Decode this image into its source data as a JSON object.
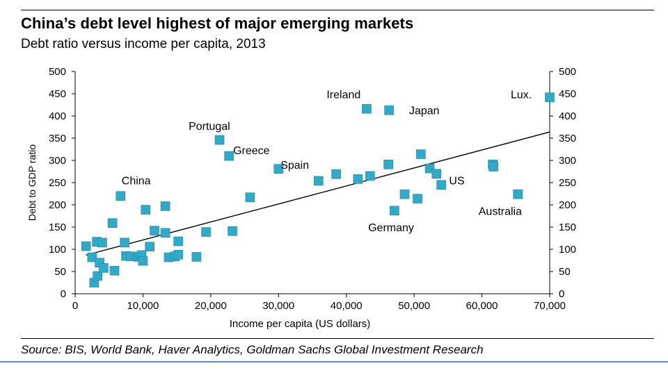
{
  "title": "China’s debt level highest of major emerging markets",
  "subtitle": "Debt ratio versus income per capita, 2013",
  "source": "Source: BIS, World Bank, Haver Analytics, Goldman Sachs Global Investment Research",
  "colors": {
    "marker": "#31a9c7",
    "markerEdge": "#1c86a3",
    "axis": "#000000",
    "trend": "#000000",
    "accentBar": "#5b8fc9"
  },
  "chart_data": {
    "type": "scatter",
    "xlabel": "Income per capita (US dollars)",
    "ylabel": "Debt to GDP ratio",
    "xlim": [
      0,
      70000
    ],
    "ylim": [
      0,
      500
    ],
    "xticks": [
      "0",
      "10,000",
      "20,000",
      "30,000",
      "40,000",
      "50,000",
      "60,000",
      "70,000"
    ],
    "yticks": [
      "0",
      "50",
      "100",
      "150",
      "200",
      "250",
      "300",
      "350",
      "400",
      "450",
      "500"
    ],
    "grid": false,
    "legend": "none",
    "points": [
      {
        "x": 1600,
        "y": 107
      },
      {
        "x": 2500,
        "y": 82
      },
      {
        "x": 2800,
        "y": 25
      },
      {
        "x": 3200,
        "y": 117
      },
      {
        "x": 3300,
        "y": 40
      },
      {
        "x": 3600,
        "y": 70
      },
      {
        "x": 4000,
        "y": 115
      },
      {
        "x": 4200,
        "y": 58
      },
      {
        "x": 5500,
        "y": 159
      },
      {
        "x": 5800,
        "y": 52
      },
      {
        "x": 6700,
        "y": 220
      },
      {
        "x": 7300,
        "y": 115
      },
      {
        "x": 7500,
        "y": 85
      },
      {
        "x": 8200,
        "y": 84
      },
      {
        "x": 9300,
        "y": 83
      },
      {
        "x": 9800,
        "y": 87
      },
      {
        "x": 10000,
        "y": 74
      },
      {
        "x": 10400,
        "y": 189
      },
      {
        "x": 11000,
        "y": 106
      },
      {
        "x": 11700,
        "y": 142
      },
      {
        "x": 13300,
        "y": 197
      },
      {
        "x": 13300,
        "y": 137
      },
      {
        "x": 13800,
        "y": 82
      },
      {
        "x": 14700,
        "y": 84
      },
      {
        "x": 15200,
        "y": 118
      },
      {
        "x": 15200,
        "y": 88
      },
      {
        "x": 17900,
        "y": 83
      },
      {
        "x": 19300,
        "y": 139
      },
      {
        "x": 21300,
        "y": 346
      },
      {
        "x": 22700,
        "y": 310
      },
      {
        "x": 23200,
        "y": 141
      },
      {
        "x": 25800,
        "y": 217
      },
      {
        "x": 30000,
        "y": 281
      },
      {
        "x": 35900,
        "y": 254
      },
      {
        "x": 38500,
        "y": 269
      },
      {
        "x": 41700,
        "y": 258
      },
      {
        "x": 43000,
        "y": 416
      },
      {
        "x": 43500,
        "y": 265
      },
      {
        "x": 46200,
        "y": 291
      },
      {
        "x": 46300,
        "y": 413
      },
      {
        "x": 47100,
        "y": 187
      },
      {
        "x": 48600,
        "y": 224
      },
      {
        "x": 50500,
        "y": 214
      },
      {
        "x": 51000,
        "y": 314
      },
      {
        "x": 52300,
        "y": 282
      },
      {
        "x": 53300,
        "y": 270
      },
      {
        "x": 54000,
        "y": 245
      },
      {
        "x": 61600,
        "y": 291
      },
      {
        "x": 61700,
        "y": 286
      },
      {
        "x": 65300,
        "y": 224
      },
      {
        "x": 70000,
        "y": 442
      }
    ],
    "trendline": {
      "x": [
        1600,
        70000
      ],
      "y": [
        87,
        364
      ]
    },
    "annotations": [
      {
        "text": "China",
        "x": 9000,
        "y": 246
      },
      {
        "text": "Portugal",
        "x": 19800,
        "y": 369
      },
      {
        "text": "Greece",
        "x": 26000,
        "y": 314
      },
      {
        "text": "Spain",
        "x": 32400,
        "y": 281
      },
      {
        "text": "Ireland",
        "x": 39600,
        "y": 440
      },
      {
        "text": "Japan",
        "x": 51500,
        "y": 404
      },
      {
        "text": "US",
        "x": 56300,
        "y": 246
      },
      {
        "text": "Germany",
        "x": 46600,
        "y": 141
      },
      {
        "text": "Australia",
        "x": 62700,
        "y": 177
      },
      {
        "text": "Lux.",
        "x": 65800,
        "y": 440
      }
    ]
  }
}
